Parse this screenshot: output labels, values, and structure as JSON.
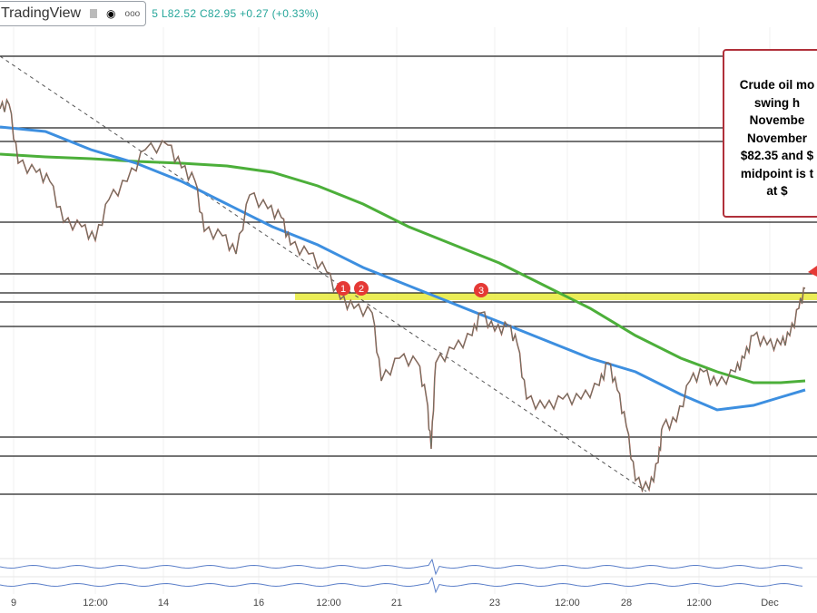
{
  "header": {
    "app": "TradingView",
    "ohlc": "5  L82.52  C82.95  +0.27 (+0.33%)"
  },
  "annotation": {
    "lines": [
      "Crude oil mo",
      "swing h",
      "Novembe",
      "November",
      "$82.35 and $",
      "midpoint is t",
      "at $"
    ]
  },
  "chart_data": {
    "type": "line",
    "title": "",
    "x_tick_labels": [
      "9",
      "12:00",
      "14",
      "16",
      "12:00",
      "21",
      "23",
      "12:00",
      "28",
      "12:00",
      "Dec"
    ],
    "series": [
      {
        "role": "price"
      },
      {
        "role": "moving-average",
        "color": "#3d8fe0"
      },
      {
        "role": "moving-average",
        "color": "#4caf3a"
      }
    ],
    "markers": [
      "1",
      "2",
      "3"
    ],
    "last_close": 82.95,
    "low": 82.52,
    "change": 0.27,
    "change_pct": 0.33,
    "highlight_zone_color": "#e8ea3a",
    "colors": {
      "up": "#26a69a",
      "down": "#ef5350",
      "marker": "#e53935",
      "annotation_border": "#b0303a"
    }
  }
}
